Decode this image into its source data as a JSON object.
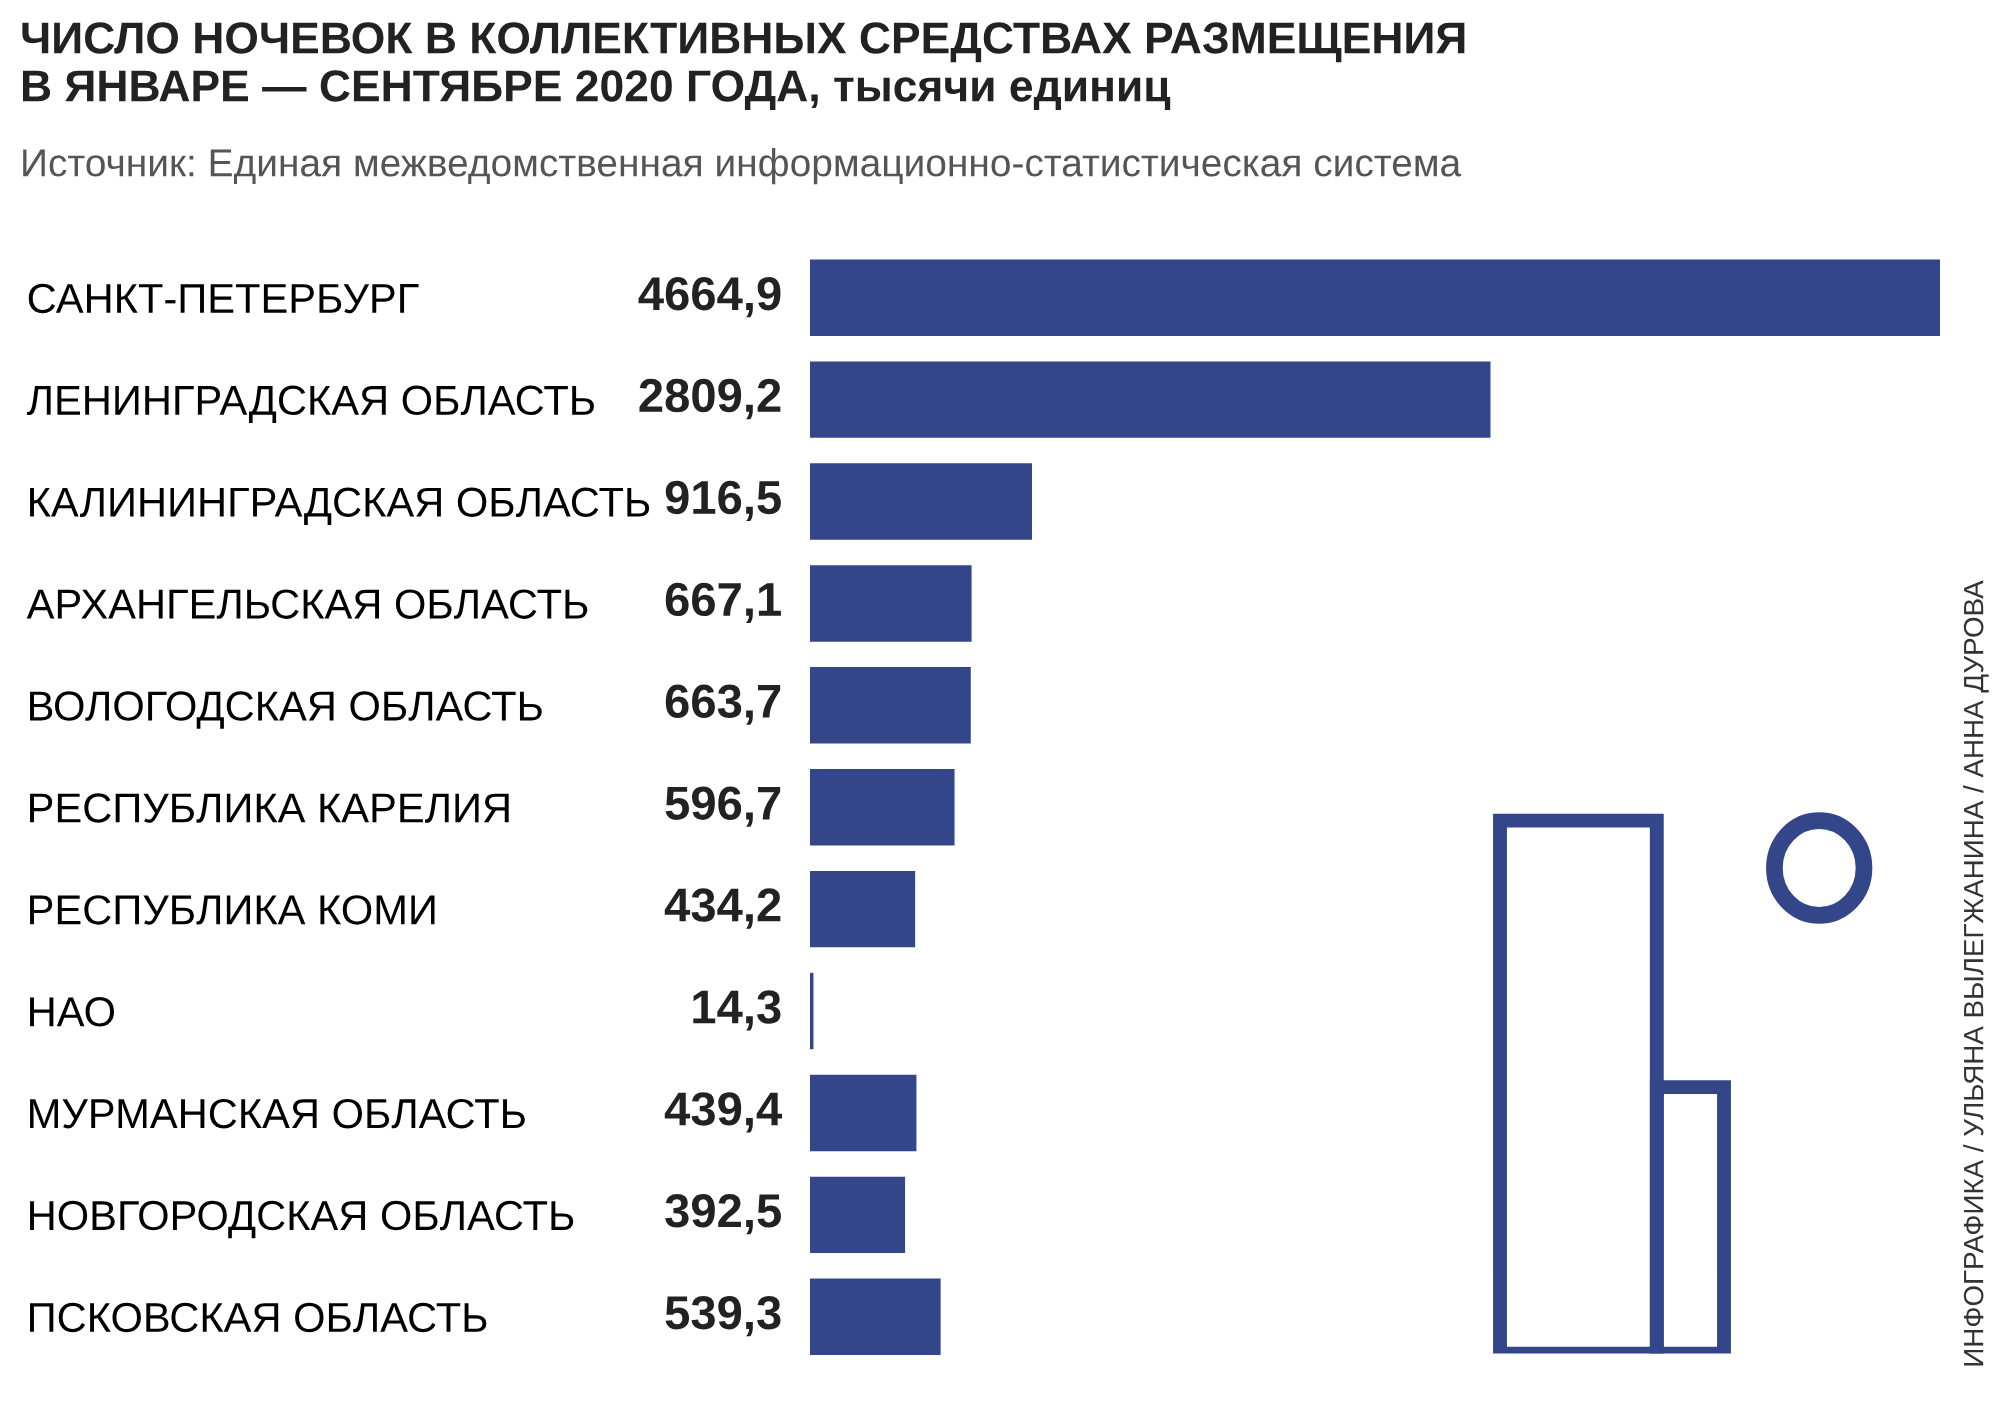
{
  "chart_data": {
    "type": "bar",
    "orientation": "horizontal",
    "title": "ЧИСЛО НОЧЕВОК В КОЛЛЕКТИВНЫХ СРЕДСТВАХ РАЗМЕЩЕНИЯ\nВ ЯНВАРЕ — СЕНТЯБРЕ 2020 ГОДА, тысячи единиц",
    "subtitle": "Источник: Единая межведомственная информационно-статистическая система",
    "categories": [
      "САНКТ-ПЕТЕРБУРГ",
      "ЛЕНИНГРАДСКАЯ ОБЛАСТЬ",
      "КАЛИНИНГРАДСКАЯ ОБЛАСТЬ",
      "АРХАНГЕЛЬСКАЯ ОБЛАСТЬ",
      "ВОЛОГОДСКАЯ ОБЛАСТЬ",
      "РЕСПУБЛИКА КАРЕЛИЯ",
      "РЕСПУБЛИКА КОМИ",
      "НАО",
      "МУРМАНСКАЯ ОБЛАСТЬ",
      "НОВГОРОДСКАЯ ОБЛАСТЬ",
      "ПСКОВСКАЯ ОБЛАСТЬ"
    ],
    "values": [
      4664.9,
      2809.2,
      916.5,
      667.1,
      663.7,
      596.7,
      434.2,
      14.3,
      439.4,
      392.5,
      539.3
    ],
    "value_labels": [
      "4664,9",
      "2809,2",
      "916,5",
      "667,1",
      "663,7",
      "596,7",
      "434,2",
      "14,3",
      "439,4",
      "392,5",
      "539,3"
    ],
    "color": "#34468a",
    "annotations": [
      "ИНФОГРАФИКА / УЛЬЯНА ВЫЛЕГЖАНИНА / АННА ДУРОВА"
    ]
  }
}
